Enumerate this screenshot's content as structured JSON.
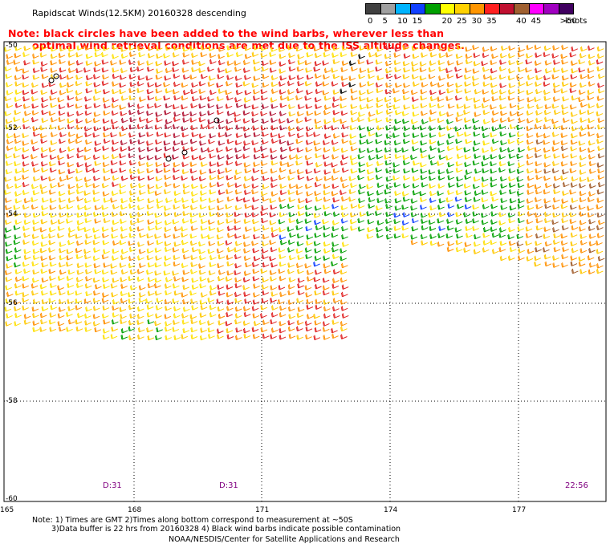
{
  "header": {
    "title": "Rapidscat Winds(12.5KM) 20160328 descending",
    "note_line1": "Note: black circles have been added to the wind barbs, wherever less than",
    "note_line2": "optimal wind retrieval conditions are met due to the ISS altitude changes."
  },
  "legend": {
    "unit_suffix": "knots",
    "bins": [
      {
        "label": "0",
        "color": "#404040"
      },
      {
        "label": "5",
        "color": "#a0a0a0"
      },
      {
        "label": "10",
        "color": "#00b4ff"
      },
      {
        "label": "15",
        "color": "#1040ff"
      },
      {
        "label": "",
        "color": "#00a000"
      },
      {
        "label": "20",
        "color": "#ffff00"
      },
      {
        "label": "25",
        "color": "#ffd200"
      },
      {
        "label": "30",
        "color": "#ff9600"
      },
      {
        "label": "35",
        "color": "#ff2020"
      },
      {
        "label": "",
        "color": "#c01030"
      },
      {
        "label": "40",
        "color": "#a06030"
      },
      {
        "label": "45",
        "color": "#ff00ff"
      },
      {
        "label": "",
        "color": "#a000c0"
      },
      {
        "label": ">50",
        "color": "#400060"
      }
    ]
  },
  "map": {
    "latitude_labels": [
      "-50",
      "-52",
      "-54",
      "-56",
      "-58",
      "-60"
    ],
    "longitude_labels": [
      "165",
      "168",
      "171",
      "174",
      "177"
    ],
    "pass_times": [
      "D:31",
      "D:31",
      "22:56"
    ],
    "wind_colors": {
      "green": "#00a000",
      "yellow": "#ffe000",
      "gold": "#ffc800",
      "orange": "#ff9000",
      "red": "#e02020",
      "darkred": "#b01030",
      "brown": "#a05a28",
      "blue": "#1040ff",
      "black": "#000000"
    }
  },
  "footer": {
    "note_line1": "Note: 1) Times are GMT 2)Times along bottom correspond to measurement at ~50S",
    "note_line2": "3)Data buffer is 22 hrs from 20160328 4) Black wind barbs indicate possible contamination",
    "credit": "NOAA/NESDIS/Center for Satellite Applications and Research"
  }
}
